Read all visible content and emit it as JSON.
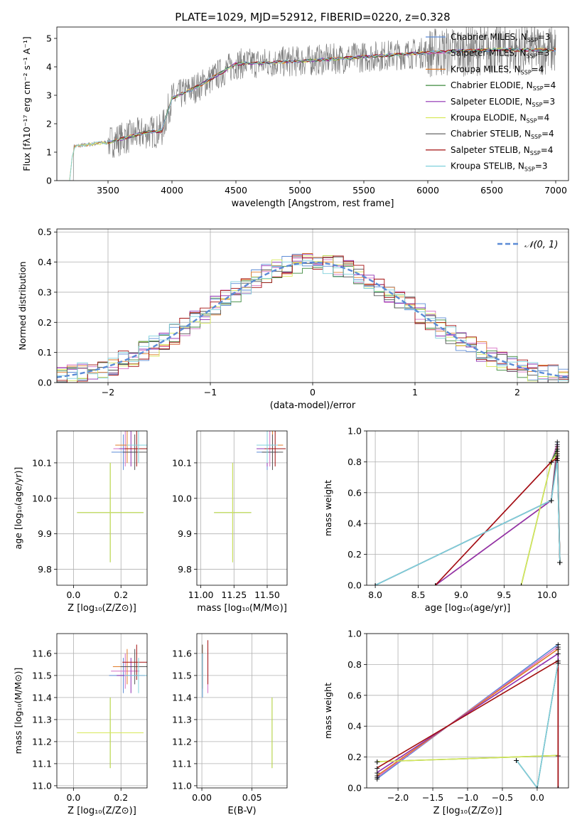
{
  "title": "PLATE=1029, MJD=52912, FIBERID=0220, z=0.328",
  "colors": {
    "Chabrier MILES": "#5b8bd6",
    "Salpeter MILES": "#d66fc4",
    "Kroupa MILES": "#e07b28",
    "Chabrier ELODIE": "#3d8a3d",
    "Salpeter ELODIE": "#8e2fb0",
    "Kroupa ELODIE": "#d7e85a",
    "Chabrier STELIB": "#555555",
    "Salpeter STELIB": "#a30f0f",
    "Kroupa STELIB": "#7fd0dc",
    "data": "#808080",
    "normal": "#5b8bd6"
  },
  "chart_data": [
    {
      "type": "line",
      "xlabel": "wavelength [Angstrom, rest frame]",
      "ylabel": "Flux [fλ10⁻¹⁷ erg cm⁻² s⁻¹ A⁻¹]",
      "xlim": [
        3100,
        7100
      ],
      "ylim": [
        0,
        5.4
      ],
      "xticks": [
        "3500",
        "4000",
        "4500",
        "5000",
        "5500",
        "6000",
        "6500",
        "7000"
      ],
      "yticks": [
        "0",
        "1",
        "2",
        "3",
        "4",
        "5"
      ],
      "grid": false,
      "legend": "right",
      "legend_entries": [
        {
          "name": "Chabrier MILES, N",
          "n": "3"
        },
        {
          "name": "Salpeter MILES, N",
          "n": "3"
        },
        {
          "name": "Kroupa MILES, N",
          "n": "4"
        },
        {
          "name": "Chabrier ELODIE, N",
          "n": "4"
        },
        {
          "name": "Salpeter ELODIE, N",
          "n": "3"
        },
        {
          "name": "Kroupa ELODIE, N",
          "n": "4"
        },
        {
          "name": "Chabrier STELIB, N",
          "n": "4"
        },
        {
          "name": "Salpeter STELIB, N",
          "n": "4"
        },
        {
          "name": "Kroupa STELIB, N",
          "n": "3"
        }
      ],
      "sub": "SSP",
      "continuum_x": [
        3200,
        3230,
        3500,
        3800,
        3920,
        4000,
        4200,
        4500,
        5000,
        5500,
        6000,
        6500,
        7000
      ],
      "continuum_y": [
        0,
        1.2,
        1.35,
        1.7,
        1.75,
        2.9,
        3.3,
        4.1,
        4.2,
        4.35,
        4.5,
        4.6,
        4.6
      ]
    },
    {
      "type": "line",
      "xlabel": "(data-model)/error",
      "ylabel": "Normed distribution",
      "xlim": [
        -2.5,
        2.5
      ],
      "ylim": [
        0,
        0.51
      ],
      "xticks": [
        "−2",
        "−1",
        "0",
        "1",
        "2"
      ],
      "yticks": [
        "0.0",
        "0.1",
        "0.2",
        "0.3",
        "0.4",
        "0.5"
      ],
      "grid": true,
      "legend": "top-right",
      "legend_label": "𝒩(0, 1)"
    },
    {
      "type": "scatter",
      "xlabel": "Z [log₁₀(Z/Z⊙)]",
      "ylabel": "age  [log₁₀(age/yr)]",
      "xlim": [
        -0.07,
        0.31
      ],
      "ylim": [
        9.755,
        10.19
      ],
      "xticks": [
        "0.0",
        "0.2"
      ],
      "yticks": [
        "9.8",
        "9.9",
        "10.0",
        "10.1"
      ]
    },
    {
      "type": "scatter",
      "xlabel": "mass [log₁₀(M/M⊙)]",
      "ylabel": "",
      "xlim": [
        10.97,
        11.65
      ],
      "ylim": [
        9.755,
        10.19
      ],
      "xticks": [
        "11.00",
        "11.25",
        "11.50"
      ],
      "yticks": [
        "9.8",
        "9.9",
        "10.0",
        "10.1"
      ]
    },
    {
      "type": "line",
      "xlabel": "age  [log₁₀(age/yr)]",
      "ylabel": "mass weight",
      "xlim": [
        7.9,
        10.25
      ],
      "ylim": [
        0,
        1.0
      ],
      "xticks": [
        "8.0",
        "8.5",
        "9.0",
        "9.5",
        "10.0"
      ],
      "yticks": [
        "0.0",
        "0.2",
        "0.4",
        "0.6",
        "0.8",
        "1.0"
      ],
      "grid": true
    },
    {
      "type": "scatter",
      "xlabel": "Z [log₁₀(Z/Z⊙)]",
      "ylabel": "mass [log₁₀(M/M⊙)]",
      "xlim": [
        -0.07,
        0.31
      ],
      "ylim": [
        10.99,
        11.69
      ],
      "xticks": [
        "0.0",
        "0.2"
      ],
      "yticks": [
        "11.0",
        "11.1",
        "11.2",
        "11.3",
        "11.4",
        "11.5",
        "11.6"
      ]
    },
    {
      "type": "scatter",
      "xlabel": "E(B-V)",
      "ylabel": "",
      "xlim": [
        -0.005,
        0.085
      ],
      "ylim": [
        10.99,
        11.69
      ],
      "xticks": [
        "0.00",
        "0.05"
      ],
      "yticks": [
        "11.0",
        "11.1",
        "11.2",
        "11.3",
        "11.4",
        "11.5",
        "11.6"
      ]
    },
    {
      "type": "line",
      "xlabel": "Z [log₁₀(Z/Z⊙)]",
      "ylabel": "mass weight",
      "xlim": [
        -2.45,
        0.45
      ],
      "ylim": [
        0,
        1.0
      ],
      "xticks": [
        "−2.0",
        "−1.5",
        "−1.0",
        "−0.5",
        "0.0"
      ],
      "yticks": [
        "0.0",
        "0.2",
        "0.4",
        "0.6",
        "0.8",
        "1.0"
      ],
      "grid": true
    }
  ]
}
